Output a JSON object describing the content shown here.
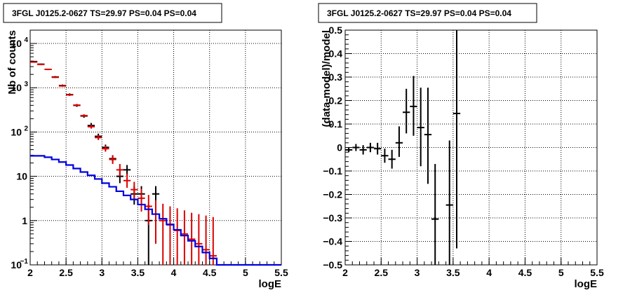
{
  "chart_data": [
    {
      "type": "line",
      "title": "3FGL J0125.2-0627 TS=29.97 PS=0.04 PS=0.04",
      "xlabel": "logE",
      "ylabel": "Nb of counts",
      "xlim": [
        2,
        5.5
      ],
      "ylim": [
        0.1,
        20000
      ],
      "yscale": "log",
      "grid": true,
      "x_ticks": [
        "2",
        "2.5",
        "3",
        "3.5",
        "4",
        "4.5",
        "5",
        "5.5"
      ],
      "y_ticks": [
        {
          "value": 0.1,
          "label": "10",
          "sup": "−1"
        },
        {
          "value": 1,
          "label": "1",
          "sup": ""
        },
        {
          "value": 10,
          "label": "10",
          "sup": ""
        },
        {
          "value": 100,
          "label": "10",
          "sup": "2"
        },
        {
          "value": 1000,
          "label": "10",
          "sup": "3"
        },
        {
          "value": 10000,
          "label": "10",
          "sup": "4"
        }
      ],
      "colors": {
        "data": "#000000",
        "model": "#dd0000",
        "component": "#0000dd"
      },
      "series": [
        {
          "style": "errorbar",
          "color": "#000000",
          "points": [
            {
              "x": 2.05,
              "y": 3900,
              "lo": 3780,
              "hi": 4020
            },
            {
              "x": 2.15,
              "y": 3400,
              "lo": 3290,
              "hi": 3510
            },
            {
              "x": 2.25,
              "y": 2600,
              "lo": 2500,
              "hi": 2700
            },
            {
              "x": 2.35,
              "y": 1750,
              "lo": 1670,
              "hi": 1830
            },
            {
              "x": 2.45,
              "y": 1120,
              "lo": 1060,
              "hi": 1180
            },
            {
              "x": 2.55,
              "y": 700,
              "lo": 655,
              "hi": 745
            },
            {
              "x": 2.65,
              "y": 400,
              "lo": 370,
              "hi": 430
            },
            {
              "x": 2.75,
              "y": 230,
              "lo": 210,
              "hi": 250
            },
            {
              "x": 2.85,
              "y": 140,
              "lo": 120,
              "hi": 160
            },
            {
              "x": 2.95,
              "y": 80,
              "lo": 70,
              "hi": 92
            },
            {
              "x": 3.05,
              "y": 45,
              "lo": 38,
              "hi": 52
            },
            {
              "x": 3.15,
              "y": 25,
              "lo": 21,
              "hi": 30
            },
            {
              "x": 3.25,
              "y": 10,
              "lo": 7,
              "hi": 14
            },
            {
              "x": 3.35,
              "y": 14,
              "lo": 10,
              "hi": 18
            },
            {
              "x": 3.45,
              "y": 4,
              "lo": 2.3,
              "hi": 6
            },
            {
              "x": 3.55,
              "y": 4,
              "lo": 2.3,
              "hi": 6
            },
            {
              "x": 3.65,
              "y": 1,
              "lo": 0.1,
              "hi": 2.3
            },
            {
              "x": 3.75,
              "y": 4,
              "lo": 2.3,
              "hi": 6
            }
          ]
        },
        {
          "style": "errorbar",
          "color": "#dd0000",
          "points": [
            {
              "x": 2.05,
              "y": 3800,
              "lo": 3700,
              "hi": 3900
            },
            {
              "x": 2.15,
              "y": 3350,
              "lo": 3260,
              "hi": 3440
            },
            {
              "x": 2.25,
              "y": 2600,
              "lo": 2520,
              "hi": 2680
            },
            {
              "x": 2.35,
              "y": 1720,
              "lo": 1660,
              "hi": 1780
            },
            {
              "x": 2.45,
              "y": 1100,
              "lo": 1060,
              "hi": 1140
            },
            {
              "x": 2.55,
              "y": 690,
              "lo": 660,
              "hi": 720
            },
            {
              "x": 2.65,
              "y": 405,
              "lo": 385,
              "hi": 425
            },
            {
              "x": 2.75,
              "y": 235,
              "lo": 220,
              "hi": 250
            },
            {
              "x": 2.85,
              "y": 132,
              "lo": 120,
              "hi": 145
            },
            {
              "x": 2.95,
              "y": 75,
              "lo": 66,
              "hi": 85
            },
            {
              "x": 3.05,
              "y": 42,
              "lo": 36,
              "hi": 49
            },
            {
              "x": 3.15,
              "y": 24,
              "lo": 19,
              "hi": 30
            },
            {
              "x": 3.25,
              "y": 14,
              "lo": 10,
              "hi": 19
            },
            {
              "x": 3.35,
              "y": 8,
              "lo": 5.5,
              "hi": 11.5
            },
            {
              "x": 3.45,
              "y": 5,
              "lo": 3,
              "hi": 7.5
            },
            {
              "x": 3.55,
              "y": 3.2,
              "lo": 1.6,
              "hi": 5.2
            },
            {
              "x": 3.65,
              "y": 2.1,
              "lo": 0.8,
              "hi": 3.8
            },
            {
              "x": 3.75,
              "y": 1.4,
              "lo": 0.3,
              "hi": 2.9
            },
            {
              "x": 3.85,
              "y": 1,
              "lo": 0.1,
              "hi": 2.4
            },
            {
              "x": 3.95,
              "y": 0.8,
              "lo": 0.1,
              "hi": 2.1
            },
            {
              "x": 4.05,
              "y": 0.6,
              "lo": 0.1,
              "hi": 1.9
            },
            {
              "x": 4.15,
              "y": 0.5,
              "lo": 0.1,
              "hi": 1.7
            },
            {
              "x": 4.25,
              "y": 0.38,
              "lo": 0.1,
              "hi": 1.5
            },
            {
              "x": 4.35,
              "y": 0.3,
              "lo": 0.1,
              "hi": 1.4
            },
            {
              "x": 4.45,
              "y": 0.22,
              "lo": 0.1,
              "hi": 1.3
            },
            {
              "x": 4.55,
              "y": 0.16,
              "lo": 0.1,
              "hi": 1.2
            }
          ]
        },
        {
          "style": "step",
          "color": "#0000dd",
          "bin_width": 0.1,
          "x": [
            2.0,
            2.1,
            2.2,
            2.3,
            2.4,
            2.5,
            2.6,
            2.7,
            2.8,
            2.9,
            3.0,
            3.1,
            3.2,
            3.3,
            3.4,
            3.5,
            3.6,
            3.7,
            3.8,
            3.9,
            4.0,
            4.1,
            4.2,
            4.3,
            4.4,
            4.5,
            4.6,
            4.7,
            4.8,
            4.9,
            5.0,
            5.1,
            5.2,
            5.3,
            5.4
          ],
          "y": [
            29,
            29,
            27,
            24,
            21,
            18,
            15,
            12.5,
            10.5,
            8.7,
            7,
            5.8,
            4.6,
            3.7,
            3,
            2.3,
            1.8,
            1.4,
            1.1,
            0.82,
            0.62,
            0.46,
            0.35,
            0.26,
            0.19,
            0.14,
            0.1,
            0.1,
            0.1,
            0.1,
            0.1,
            0.1,
            0.1,
            0.1,
            0.1
          ]
        }
      ]
    },
    {
      "type": "scatter",
      "title": "3FGL J0125.2-0627 TS=29.97 PS=0.04 PS=0.04",
      "xlabel": "logE",
      "ylabel": "(data-model)/model",
      "xlim": [
        2,
        5.5
      ],
      "ylim": [
        -0.5,
        0.5
      ],
      "grid": true,
      "x_ticks": [
        "2",
        "2.5",
        "3",
        "3.5",
        "4",
        "4.5",
        "5",
        "5.5"
      ],
      "y_ticks": [
        "−0.5",
        "−0.4",
        "−0.3",
        "−0.2",
        "−0.1",
        "0",
        "0.1",
        "0.2",
        "0.3",
        "0.4",
        "0.5"
      ],
      "series": [
        {
          "style": "errorbar",
          "color": "#000000",
          "points": [
            {
              "x": 2.05,
              "y": -0.01,
              "lo": -0.02,
              "hi": 0.0
            },
            {
              "x": 2.15,
              "y": 0.0,
              "lo": -0.015,
              "hi": 0.015
            },
            {
              "x": 2.25,
              "y": -0.01,
              "lo": -0.03,
              "hi": 0.01
            },
            {
              "x": 2.35,
              "y": 0.0,
              "lo": -0.02,
              "hi": 0.02
            },
            {
              "x": 2.45,
              "y": -0.005,
              "lo": -0.03,
              "hi": 0.02
            },
            {
              "x": 2.55,
              "y": -0.035,
              "lo": -0.065,
              "hi": -0.005
            },
            {
              "x": 2.65,
              "y": -0.05,
              "lo": -0.09,
              "hi": -0.01
            },
            {
              "x": 2.75,
              "y": 0.02,
              "lo": -0.04,
              "hi": 0.09
            },
            {
              "x": 2.85,
              "y": 0.15,
              "lo": 0.06,
              "hi": 0.25
            },
            {
              "x": 2.95,
              "y": 0.175,
              "lo": 0.05,
              "hi": 0.305
            },
            {
              "x": 3.05,
              "y": 0.085,
              "lo": -0.08,
              "hi": 0.255
            },
            {
              "x": 3.15,
              "y": 0.055,
              "lo": -0.155,
              "hi": 0.255
            },
            {
              "x": 3.25,
              "y": -0.305,
              "lo": -0.5,
              "hi": -0.07
            },
            {
              "x": 3.45,
              "y": -0.245,
              "lo": -0.5,
              "hi": 0.03
            },
            {
              "x": 3.55,
              "y": 0.145,
              "lo": -0.43,
              "hi": 0.5
            }
          ]
        }
      ]
    }
  ]
}
